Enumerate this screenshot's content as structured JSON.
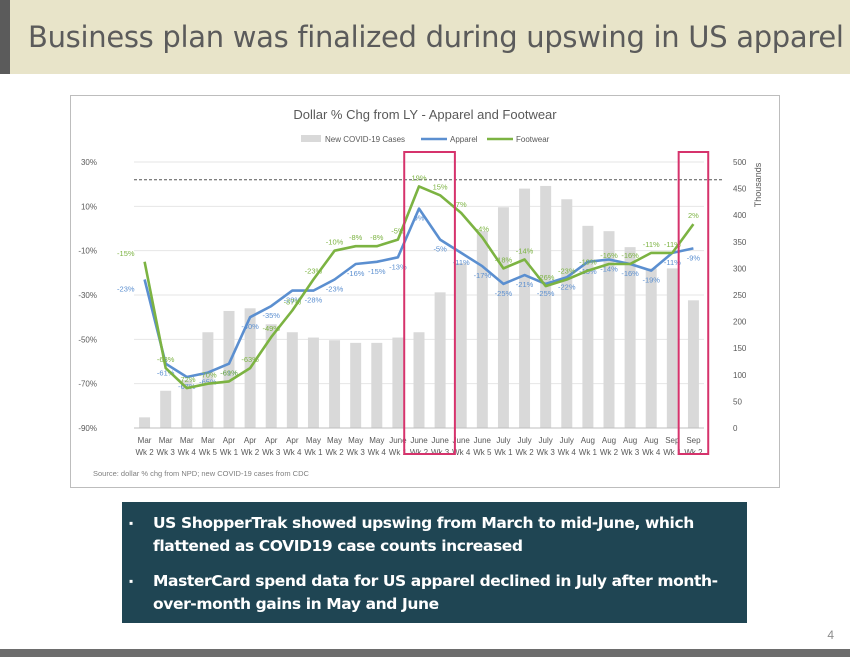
{
  "slide": {
    "title": "Business plan was finalized during upswing in US apparel",
    "page_number": "4",
    "colors": {
      "title_band": "#e8e4c9",
      "accent": "#5b5b5b",
      "callout_bg": "#1f4553",
      "highlight_box": "#d6336c"
    }
  },
  "chart_data": {
    "type": "line",
    "title": "Dollar % Chg from LY - Apparel and Footwear",
    "source": "Source: dollar % chg from NPD; new COVID-19 cases from CDC",
    "categories": [
      [
        "Mar",
        "Wk 2"
      ],
      [
        "Mar",
        "Wk 3"
      ],
      [
        "Mar",
        "Wk 4"
      ],
      [
        "Mar",
        "Wk 5"
      ],
      [
        "Apr",
        "Wk 1"
      ],
      [
        "Apr",
        "Wk 2"
      ],
      [
        "Apr",
        "Wk 3"
      ],
      [
        "Apr",
        "Wk 4"
      ],
      [
        "May",
        "Wk 1"
      ],
      [
        "May",
        "Wk 2"
      ],
      [
        "May",
        "Wk 3"
      ],
      [
        "May",
        "Wk 4"
      ],
      [
        "June",
        "Wk 1"
      ],
      [
        "June",
        "Wk 2"
      ],
      [
        "June",
        "Wk 3"
      ],
      [
        "June",
        "Wk 4"
      ],
      [
        "June",
        "Wk 5"
      ],
      [
        "July",
        "Wk 1"
      ],
      [
        "July",
        "Wk 2"
      ],
      [
        "July",
        "Wk 3"
      ],
      [
        "July",
        "Wk 4"
      ],
      [
        "Aug",
        "Wk 1"
      ],
      [
        "Aug",
        "Wk 2"
      ],
      [
        "Aug",
        "Wk 3"
      ],
      [
        "Aug",
        "Wk 4"
      ],
      [
        "Sep",
        "Wk 1"
      ],
      [
        "Sep",
        "Wk 2"
      ]
    ],
    "left_axis": {
      "ticks": [
        "30%",
        "10%",
        "-10%",
        "-30%",
        "-50%",
        "-70%",
        "-90%"
      ],
      "min": -90,
      "max": 30
    },
    "right_axis": {
      "label": "Thousands",
      "ticks": [
        "500",
        "450",
        "400",
        "350",
        "300",
        "250",
        "200",
        "150",
        "100",
        "50",
        "0"
      ],
      "min": 0,
      "max": 500
    },
    "series": [
      {
        "name": "New COVID-19 Cases",
        "kind": "bar",
        "axis": "right",
        "color": "#d9d9d9",
        "values": [
          20,
          70,
          90,
          180,
          220,
          225,
          195,
          180,
          170,
          165,
          160,
          160,
          170,
          180,
          255,
          310,
          370,
          415,
          450,
          455,
          430,
          380,
          370,
          340,
          300,
          300,
          240
        ]
      },
      {
        "name": "Apparel",
        "kind": "line",
        "axis": "left",
        "color": "#5b8fd0",
        "values": [
          -23,
          -61,
          -67,
          -65,
          -61,
          -40,
          -35,
          -28,
          -28,
          -23,
          -16,
          -15,
          -13,
          9,
          -5,
          -11,
          -17,
          -25,
          -21,
          -25,
          -22,
          -15,
          -14,
          -16,
          -19,
          -11,
          -9
        ],
        "labels": [
          "-23%",
          "-61%",
          "-67%",
          "-65%",
          "-61%",
          "-40%",
          "-35%",
          "-28%",
          "-28%",
          "-23%",
          "-16%",
          "-15%",
          "-13%",
          "9%",
          "-5%",
          "-11%",
          "-17%",
          "-25%",
          "-21%",
          "-25%",
          "-22%",
          "-15%",
          "-14%",
          "-16%",
          "-19%",
          "-11%",
          "-9%"
        ]
      },
      {
        "name": "Footwear",
        "kind": "line",
        "axis": "left",
        "color": "#7cb342",
        "values": [
          -15,
          -63,
          -72,
          -70,
          -69,
          -63,
          -49,
          -37,
          -23,
          -10,
          -8,
          -8,
          -5,
          19,
          15,
          7,
          -4,
          -18,
          -14,
          -26,
          -23,
          -19,
          -16,
          -16,
          -11,
          -11,
          2
        ],
        "labels": [
          "-15%",
          "-63%",
          "-72%",
          "-70%",
          "-69%",
          "-63%",
          "-49%",
          "-37%",
          "-23%",
          "-10%",
          "-8%",
          "-8%",
          "-5%",
          "19%",
          "15%",
          "7%",
          "-4%",
          "-18%",
          "-14%",
          "-26%",
          "-23%",
          "-19%",
          "-16%",
          "-16%",
          "-11%",
          "-11%",
          "2%"
        ]
      }
    ],
    "reference_line": {
      "value": 22,
      "style": "dashed",
      "axis": "left"
    },
    "highlight_boxes": [
      {
        "from_category": 13,
        "to_category": 14
      },
      {
        "from_category": 26,
        "to_category": 26
      }
    ],
    "legend_position": "top-center",
    "grid": true
  },
  "callout": {
    "bullets": [
      "US ShopperTrak showed upswing from March to mid-June, which flattened as COVID19 case counts increased",
      "MasterCard spend data for US apparel declined in July after month-over-month gains in May and June"
    ],
    "bullet_glyph": "▪"
  }
}
